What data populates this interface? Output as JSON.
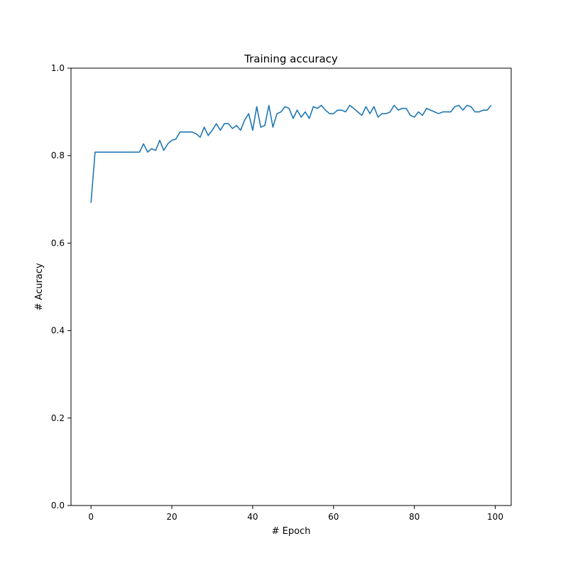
{
  "chart_data": {
    "type": "line",
    "title": "Training accuracy",
    "xlabel": "# Epoch",
    "ylabel": "# Acuracy",
    "xlim": [
      -4.95,
      103.95
    ],
    "ylim": [
      0.0,
      1.0
    ],
    "xticks": [
      "0",
      "20",
      "40",
      "60",
      "80",
      "100"
    ],
    "yticks": [
      "0.0",
      "0.2",
      "0.4",
      "0.6",
      "0.8",
      "1.0"
    ],
    "grid": false,
    "legend": "none",
    "series": [
      {
        "color": "#1f77b4",
        "x": [
          0,
          1,
          2,
          3,
          4,
          5,
          6,
          7,
          8,
          9,
          10,
          11,
          12,
          13,
          14,
          15,
          16,
          17,
          18,
          19,
          20,
          21,
          22,
          23,
          24,
          25,
          26,
          27,
          28,
          29,
          30,
          31,
          32,
          33,
          34,
          35,
          36,
          37,
          38,
          39,
          40,
          41,
          42,
          43,
          44,
          45,
          46,
          47,
          48,
          49,
          50,
          51,
          52,
          53,
          54,
          55,
          56,
          57,
          58,
          59,
          60,
          61,
          62,
          63,
          64,
          65,
          66,
          67,
          68,
          69,
          70,
          71,
          72,
          73,
          74,
          75,
          76,
          77,
          78,
          79,
          80,
          81,
          82,
          83,
          84,
          85,
          86,
          87,
          88,
          89,
          90,
          91,
          92,
          93,
          94,
          95,
          96,
          97,
          98,
          99
        ],
        "values": [
          0.692,
          0.808,
          0.808,
          0.808,
          0.808,
          0.808,
          0.808,
          0.808,
          0.808,
          0.808,
          0.808,
          0.808,
          0.808,
          0.827,
          0.808,
          0.816,
          0.812,
          0.835,
          0.812,
          0.827,
          0.835,
          0.838,
          0.854,
          0.854,
          0.854,
          0.854,
          0.85,
          0.842,
          0.865,
          0.846,
          0.858,
          0.873,
          0.858,
          0.873,
          0.873,
          0.862,
          0.869,
          0.858,
          0.881,
          0.896,
          0.858,
          0.912,
          0.865,
          0.869,
          0.915,
          0.865,
          0.896,
          0.9,
          0.912,
          0.908,
          0.885,
          0.904,
          0.888,
          0.9,
          0.885,
          0.912,
          0.908,
          0.915,
          0.904,
          0.896,
          0.896,
          0.904,
          0.904,
          0.9,
          0.915,
          0.908,
          0.9,
          0.892,
          0.912,
          0.896,
          0.912,
          0.888,
          0.896,
          0.896,
          0.9,
          0.915,
          0.904,
          0.908,
          0.908,
          0.892,
          0.888,
          0.9,
          0.892,
          0.908,
          0.904,
          0.9,
          0.896,
          0.9,
          0.9,
          0.9,
          0.912,
          0.915,
          0.904,
          0.915,
          0.912,
          0.9,
          0.9,
          0.904,
          0.904,
          0.915
        ]
      }
    ]
  }
}
